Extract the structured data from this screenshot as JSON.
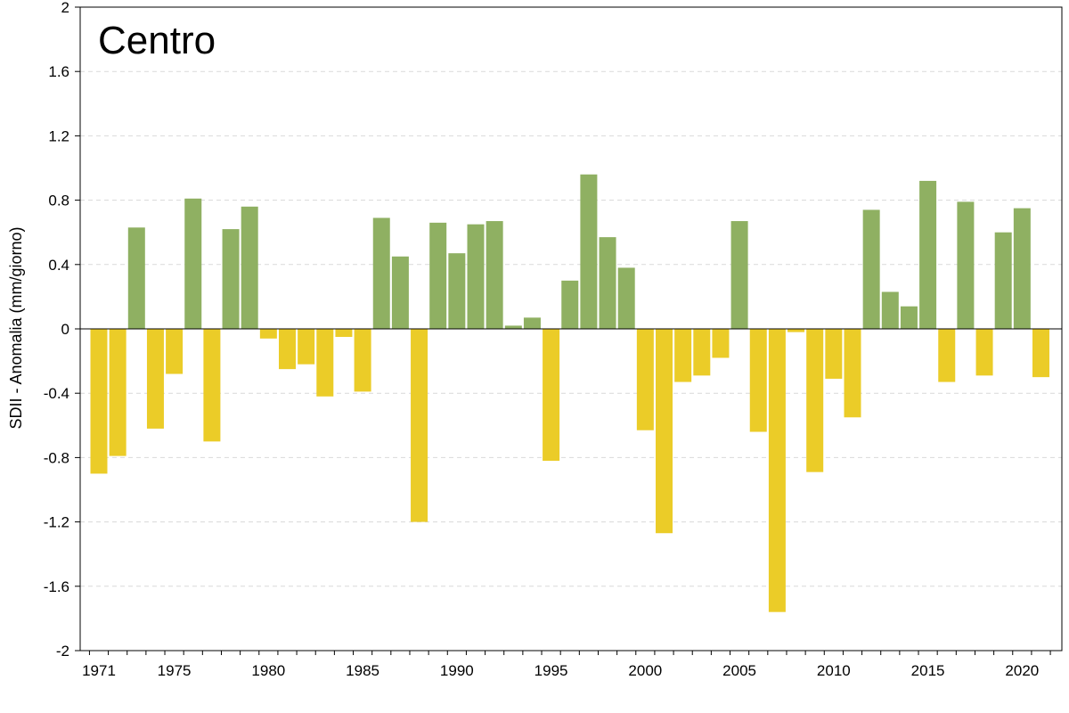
{
  "chart_data": {
    "type": "bar",
    "title": "Centro",
    "ylabel": "SDII - Anomalia (mm/giorno)",
    "xlabel": "",
    "ylim": [
      -2,
      2
    ],
    "yticks": [
      2,
      1.6,
      1.2,
      0.8,
      0.4,
      0,
      -0.4,
      -0.8,
      -1.2,
      -1.6,
      -2
    ],
    "ytick_labels": [
      "2",
      "1.6",
      "1.2",
      "0.8",
      "0.4",
      "0",
      "-0.4",
      "-0.8",
      "-1.2",
      "-1.6",
      "-2"
    ],
    "xtick_labels": [
      "1971",
      "1975",
      "1980",
      "1985",
      "1990",
      "1995",
      "2000",
      "2005",
      "2010",
      "2015",
      "2020"
    ],
    "grid": "horizontal-dashed",
    "colors": {
      "positive": "#8fb062",
      "negative": "#ebcc28"
    },
    "categories": [
      1971,
      1972,
      1973,
      1974,
      1975,
      1976,
      1977,
      1978,
      1979,
      1980,
      1981,
      1982,
      1983,
      1984,
      1985,
      1986,
      1987,
      1988,
      1989,
      1990,
      1991,
      1992,
      1993,
      1994,
      1995,
      1996,
      1997,
      1998,
      1999,
      2000,
      2001,
      2002,
      2003,
      2004,
      2005,
      2006,
      2007,
      2008,
      2009,
      2010,
      2011,
      2012,
      2013,
      2014,
      2015,
      2016,
      2017,
      2018,
      2019,
      2020,
      2021
    ],
    "values": [
      -0.9,
      -0.79,
      0.63,
      -0.62,
      -0.28,
      0.81,
      -0.7,
      0.62,
      0.76,
      -0.06,
      -0.25,
      -0.22,
      -0.42,
      -0.05,
      -0.39,
      0.69,
      0.45,
      -1.2,
      0.66,
      0.47,
      0.65,
      0.67,
      0.02,
      0.07,
      -0.82,
      0.3,
      0.96,
      0.57,
      0.38,
      -0.63,
      -1.27,
      -0.33,
      -0.29,
      -0.18,
      0.67,
      -0.64,
      -1.76,
      -0.02,
      -0.89,
      -0.31,
      -0.55,
      0.74,
      0.23,
      0.14,
      0.92,
      -0.33,
      0.79,
      -0.29,
      0.6,
      0.75,
      -0.3
    ]
  }
}
